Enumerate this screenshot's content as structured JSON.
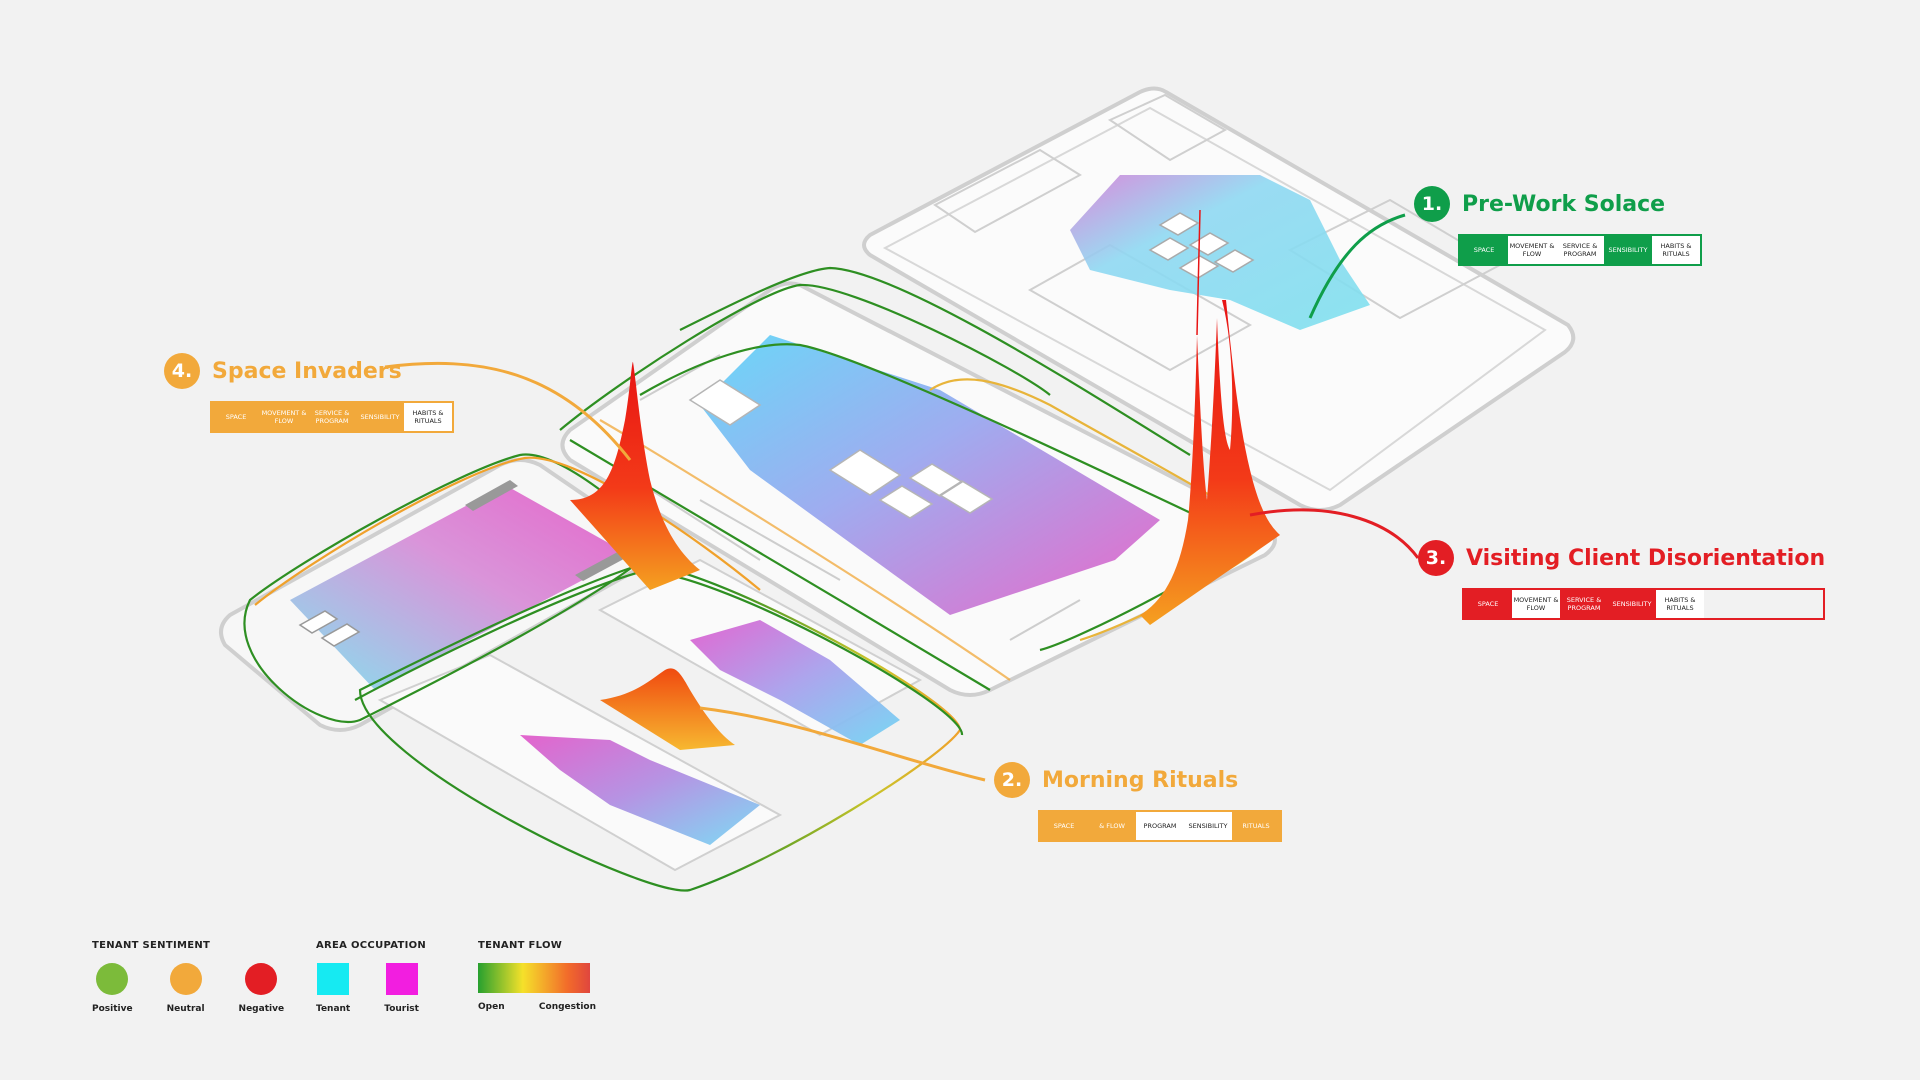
{
  "colors": {
    "positive": "#7cbb3a",
    "neutral": "#f2a93b",
    "negative": "#e31e24",
    "tenant": "#16eaf2",
    "tourist": "#f21ee0",
    "green_accent": "#0f9e4a",
    "flow_open": "#27a02f",
    "flow_mid": "#f5e12a",
    "flow_congestion": "#e0463e"
  },
  "callouts": [
    {
      "number": "1.",
      "title": "Pre-Work Solace",
      "color": "#0f9e4a",
      "tags": [
        {
          "label": "SPACE",
          "active": true
        },
        {
          "label": "MOVEMENT & FLOW",
          "active": false
        },
        {
          "label": "SERVICE & PROGRAM",
          "active": false
        },
        {
          "label": "SENSIBILITY",
          "active": true
        },
        {
          "label": "HABITS & RITUALS",
          "active": false
        }
      ]
    },
    {
      "number": "2.",
      "title": "Morning Rituals",
      "color": "#f2a93b",
      "tags": [
        {
          "label": "SPACE",
          "active": true
        },
        {
          "label": "& FLOW",
          "active": true
        },
        {
          "label": "PROGRAM",
          "active": false
        },
        {
          "label": "SENSIBILITY",
          "active": false
        },
        {
          "label": "RITUALS",
          "active": true
        }
      ]
    },
    {
      "number": "3.",
      "title": "Visiting Client Disorientation",
      "color": "#e31e24",
      "tags": [
        {
          "label": "SPACE",
          "active": true
        },
        {
          "label": "MOVEMENT & FLOW",
          "active": false
        },
        {
          "label": "SERVICE & PROGRAM",
          "active": true
        },
        {
          "label": "SENSIBILITY",
          "active": true
        },
        {
          "label": "HABITS & RITUALS",
          "active": false
        }
      ]
    },
    {
      "number": "4.",
      "title": "Space Invaders",
      "color": "#f2a93b",
      "tags": [
        {
          "label": "SPACE",
          "active": true
        },
        {
          "label": "MOVEMENT & FLOW",
          "active": true
        },
        {
          "label": "SERVICE & PROGRAM",
          "active": true
        },
        {
          "label": "SENSIBILITY",
          "active": true
        },
        {
          "label": "HABITS & RITUALS",
          "active": false
        }
      ]
    }
  ],
  "legend": {
    "sentiment": {
      "title": "TENANT SENTIMENT",
      "items": [
        "Positive",
        "Neutral",
        "Negative"
      ]
    },
    "occupation": {
      "title": "AREA OCCUPATION",
      "items": [
        "Tenant",
        "Tourist"
      ]
    },
    "flow": {
      "title": "TENANT FLOW",
      "open": "Open",
      "congestion": "Congestion"
    }
  }
}
